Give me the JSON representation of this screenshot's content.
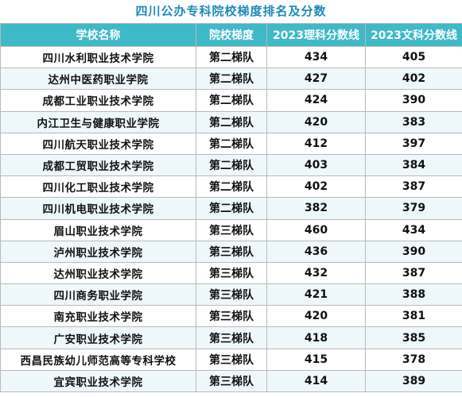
{
  "title": "四川公办专科院校梯度排名及分数",
  "headers": [
    "学校名称",
    "院校梯度",
    "2023理科分数线",
    "2023文科分数线"
  ],
  "rows": [
    {
      "school": "四川水利职业技术学院",
      "tier": "第二梯队",
      "science": "434",
      "arts": "405"
    },
    {
      "school": "达州中医药职业学院",
      "tier": "第二梯队",
      "science": "427",
      "arts": "402"
    },
    {
      "school": "成都工业职业技术学院",
      "tier": "第二梯队",
      "science": "424",
      "arts": "390"
    },
    {
      "school": "内江卫生与健康职业学院",
      "tier": "第二梯队",
      "science": "420",
      "arts": "383"
    },
    {
      "school": "四川航天职业技术学院",
      "tier": "第二梯队",
      "science": "412",
      "arts": "397"
    },
    {
      "school": "成都工贸职业技术学院",
      "tier": "第二梯队",
      "science": "403",
      "arts": "384"
    },
    {
      "school": "四川化工职业技术学院",
      "tier": "第二梯队",
      "science": "402",
      "arts": "387"
    },
    {
      "school": "四川机电职业技术学院",
      "tier": "第二梯队",
      "science": "382",
      "arts": "379"
    },
    {
      "school": "眉山职业技术学院",
      "tier": "第三梯队",
      "science": "460",
      "arts": "434"
    },
    {
      "school": "泸州职业技术学院",
      "tier": "第三梯队",
      "science": "436",
      "arts": "390"
    },
    {
      "school": "达州职业技术学院",
      "tier": "第三梯队",
      "science": "432",
      "arts": "387"
    },
    {
      "school": "四川商务职业学院",
      "tier": "第三梯队",
      "science": "421",
      "arts": "388"
    },
    {
      "school": "南充职业技术学院",
      "tier": "第三梯队",
      "science": "420",
      "arts": "381"
    },
    {
      "school": "广安职业技术学院",
      "tier": "第三梯队",
      "science": "418",
      "arts": "385"
    },
    {
      "school": "西昌民族幼儿师范高等专科学校",
      "tier": "第三梯队",
      "science": "415",
      "arts": "378"
    },
    {
      "school": "宜宾职业技术学院",
      "tier": "第三梯队",
      "science": "414",
      "arts": "389"
    }
  ],
  "colors": {
    "title": "#1c8bb8",
    "header_bg": "#3fb8c8",
    "header_text": "#ffffff",
    "row_alt": "#eef8fa"
  }
}
